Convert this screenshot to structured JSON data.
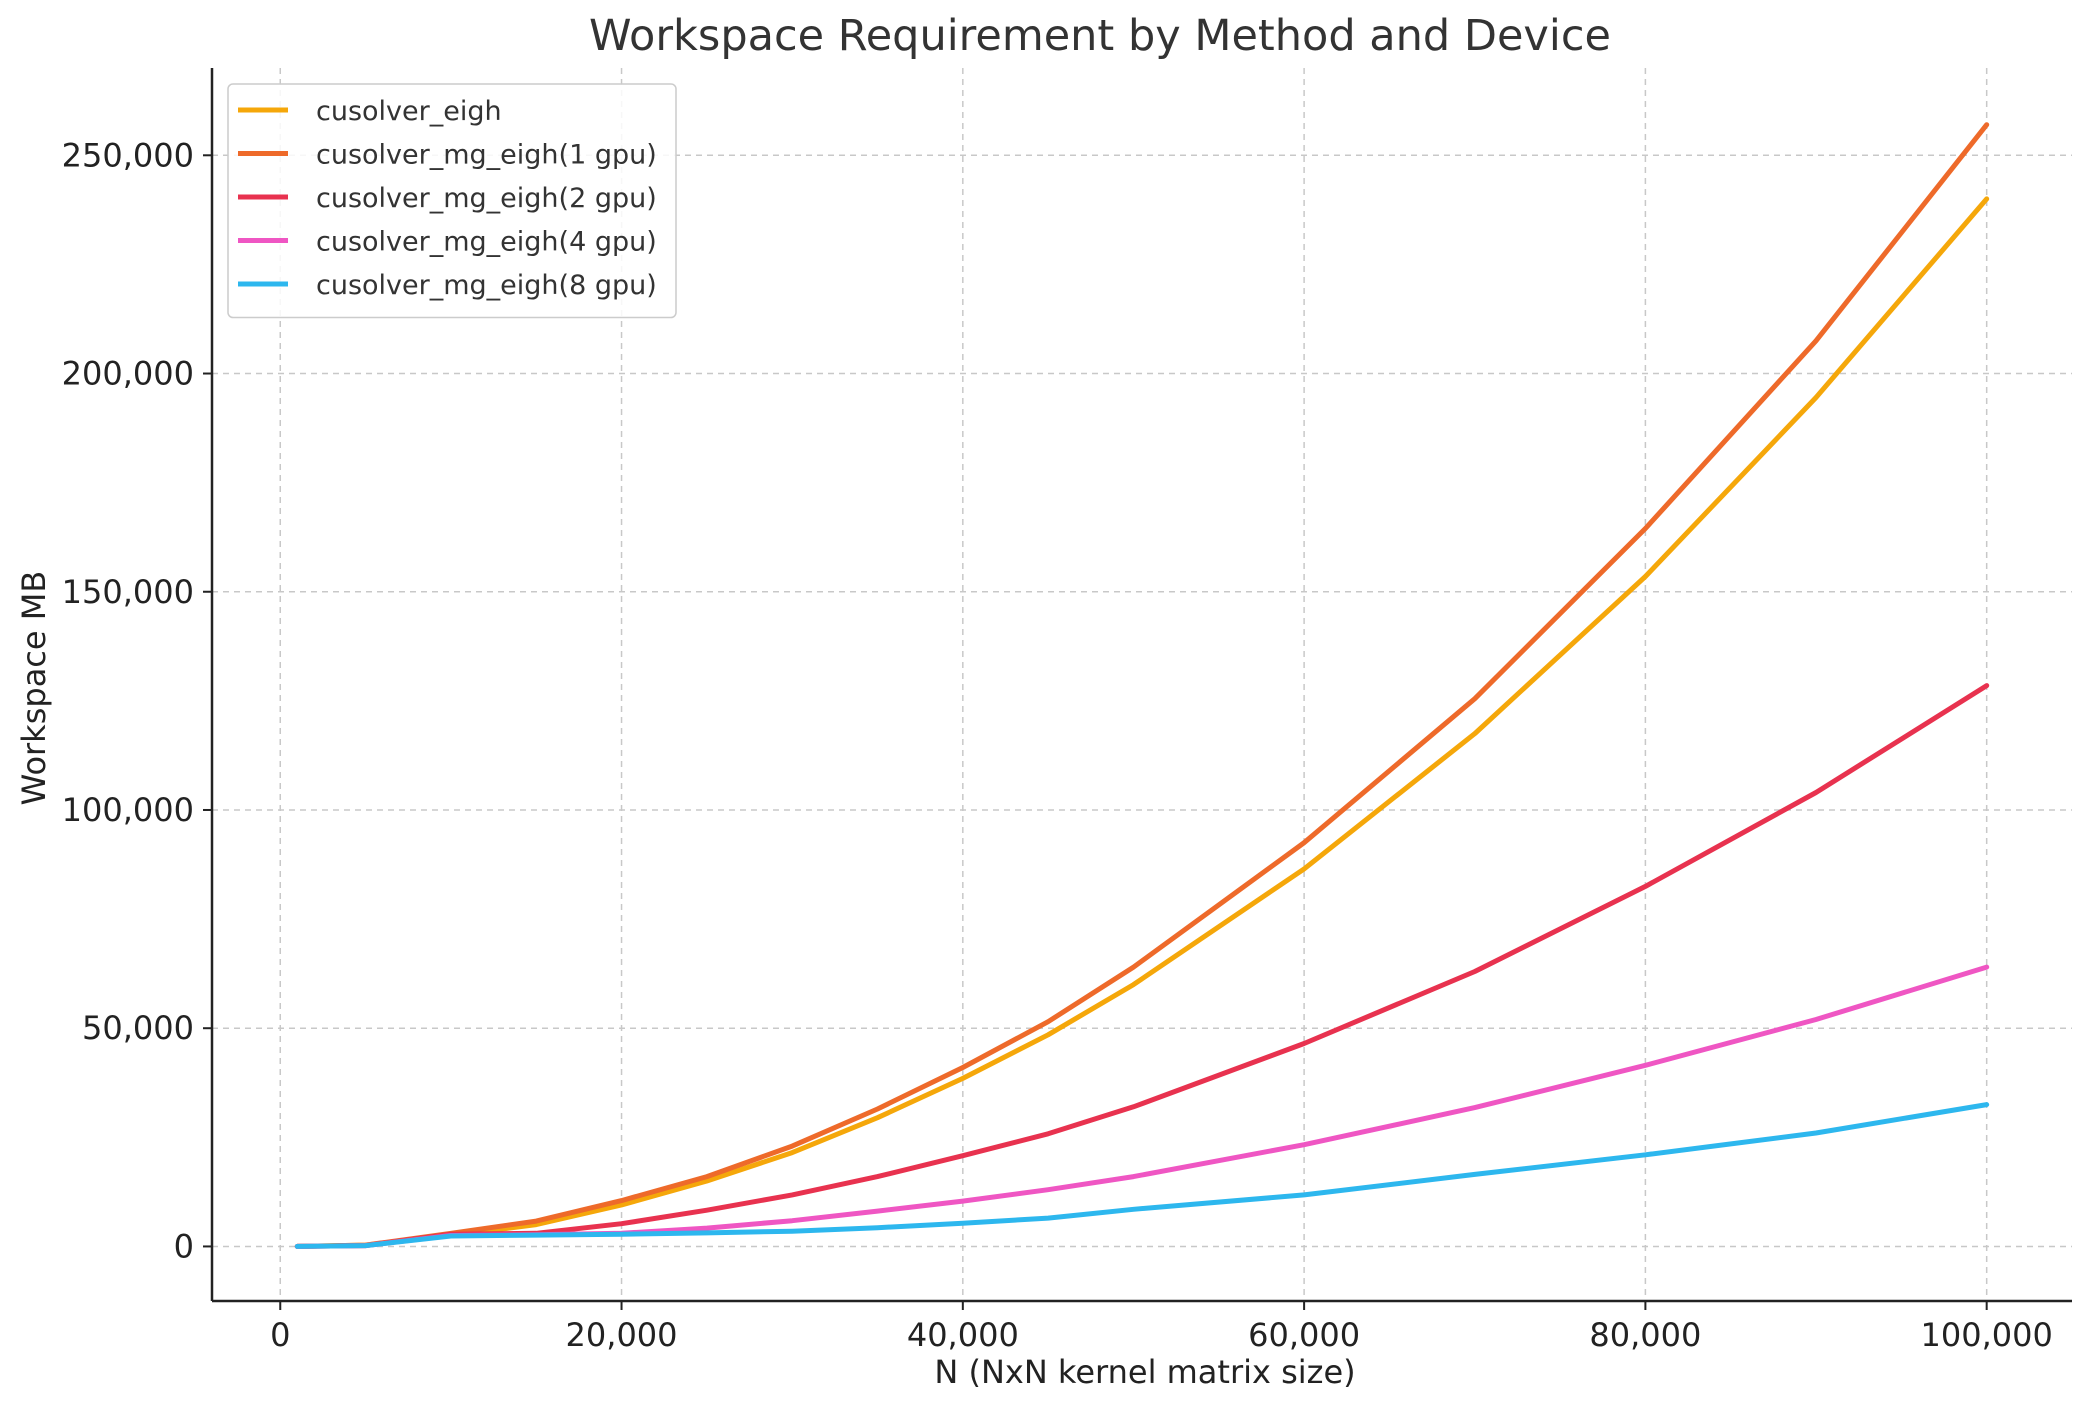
{
  "chart_data": {
    "type": "line",
    "title": "Workspace Requirement by Method and Device",
    "xlabel": "N (NxN kernel matrix size)",
    "ylabel": "Workspace MB",
    "xlim": [
      -4000,
      105000
    ],
    "ylim": [
      -12500,
      270000
    ],
    "xticks": [
      0,
      20000,
      40000,
      60000,
      80000,
      100000
    ],
    "xtick_labels": [
      "0",
      "20,000",
      "40,000",
      "60,000",
      "80,000",
      "100,000"
    ],
    "yticks": [
      0,
      50000,
      100000,
      150000,
      200000,
      250000
    ],
    "ytick_labels": [
      "0",
      "50,000",
      "100,000",
      "150,000",
      "200,000",
      "250,000"
    ],
    "grid": true,
    "legend_position": "top-left",
    "x": [
      1000,
      5000,
      10000,
      15000,
      20000,
      25000,
      30000,
      35000,
      40000,
      45000,
      50000,
      60000,
      70000,
      80000,
      90000,
      100000
    ],
    "series": [
      {
        "name": "cusolver_eigh",
        "color": "#f5a70a",
        "values": [
          0,
          300,
          2500,
          5000,
          9500,
          15000,
          21500,
          29500,
          38500,
          48500,
          60000,
          86500,
          117500,
          153500,
          194500,
          240000
        ]
      },
      {
        "name": "cusolver_mg_eigh(1 gpu)",
        "color": "#ee6a2a",
        "values": [
          0,
          300,
          3000,
          5800,
          10500,
          16000,
          23000,
          31500,
          41000,
          51500,
          64000,
          92500,
          125500,
          164500,
          207500,
          257000
        ]
      },
      {
        "name": "cusolver_mg_eigh(2 gpu)",
        "color": "#e8324f",
        "values": [
          0,
          200,
          2800,
          3000,
          5200,
          8300,
          11800,
          16000,
          20800,
          25800,
          32000,
          46500,
          63000,
          82500,
          104000,
          128500
        ]
      },
      {
        "name": "cusolver_mg_eigh(4 gpu)",
        "color": "#ef56c3",
        "values": [
          0,
          200,
          2500,
          2700,
          3000,
          4200,
          5900,
          8100,
          10400,
          13000,
          16000,
          23300,
          31800,
          41500,
          52000,
          64000
        ]
      },
      {
        "name": "cusolver_mg_eigh(8 gpu)",
        "color": "#2db7ee",
        "values": [
          0,
          200,
          2400,
          2600,
          2800,
          3100,
          3500,
          4300,
          5300,
          6500,
          8500,
          11800,
          16500,
          21000,
          26000,
          32500
        ]
      }
    ]
  }
}
